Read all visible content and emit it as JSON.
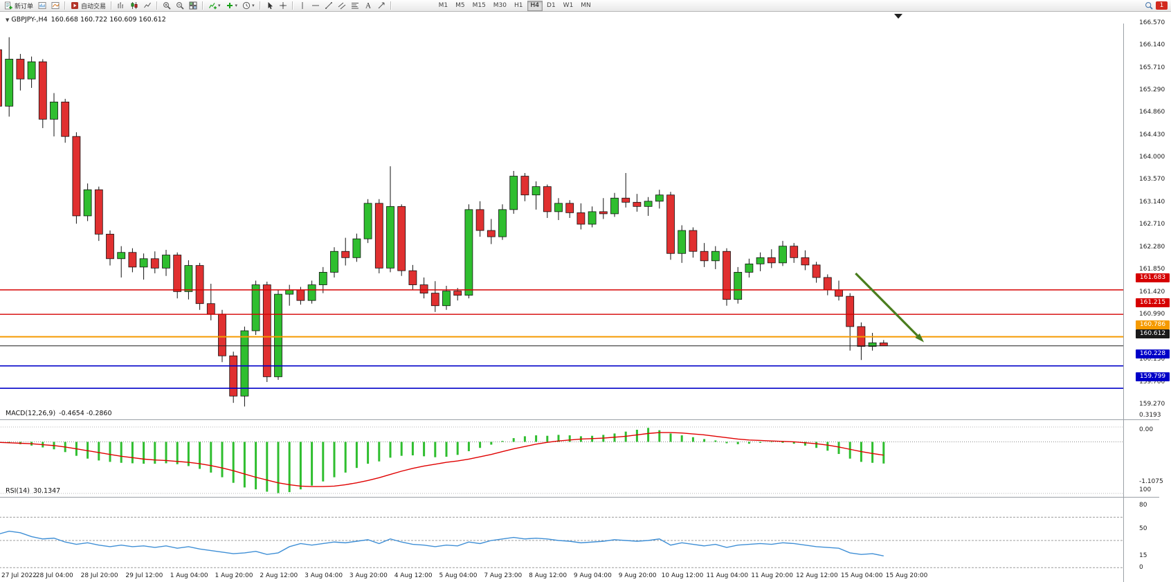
{
  "toolbar": {
    "buttons": [
      {
        "name": "new-order",
        "icon": "doc-plus",
        "label": "新订单"
      },
      {
        "name": "charts-window",
        "icon": "chart-window"
      },
      {
        "name": "chart-cycle",
        "icon": "chart-cycle"
      },
      {
        "sep": true
      },
      {
        "name": "autotrade",
        "icon": "autotrade",
        "label": "自动交易"
      },
      {
        "sep": true
      },
      {
        "name": "bars-chart",
        "icon": "bars-chart"
      },
      {
        "name": "candles-chart",
        "icon": "candles-chart"
      },
      {
        "name": "line-chart",
        "icon": "line-chart"
      },
      {
        "sep": true
      },
      {
        "name": "zoom-in",
        "icon": "zoom-in"
      },
      {
        "name": "zoom-out",
        "icon": "zoom-out"
      },
      {
        "name": "tile-windows",
        "icon": "tile-windows"
      },
      {
        "sep": true
      },
      {
        "name": "indicators",
        "icon": "indicators",
        "caret": true
      },
      {
        "name": "add-indicator",
        "icon": "add-plus",
        "caret": true
      },
      {
        "name": "periods",
        "icon": "clock",
        "caret": true
      },
      {
        "sep": true
      },
      {
        "name": "cursor",
        "icon": "cursor"
      },
      {
        "name": "crosshair",
        "icon": "crosshair"
      },
      {
        "sep": true
      },
      {
        "name": "vertical-line",
        "icon": "vline"
      },
      {
        "name": "horizontal-line",
        "icon": "hline"
      },
      {
        "name": "trendline",
        "icon": "trendline"
      },
      {
        "name": "equidistant-channel",
        "icon": "channel"
      },
      {
        "name": "fibonacci",
        "icon": "fibonacci"
      },
      {
        "name": "text",
        "icon": "text-tool"
      },
      {
        "name": "arrows",
        "icon": "arrows-tool"
      },
      {
        "sep": true
      }
    ],
    "timeframes": [
      "M1",
      "M5",
      "M15",
      "M30",
      "H1",
      "H4",
      "D1",
      "W1",
      "MN"
    ],
    "active_timeframe": "H4",
    "notification_count": "1"
  },
  "colors": {
    "bull": "#2fbe2f",
    "bear": "#e03030",
    "wick": "#111111",
    "macd_hist": "#2fbe2f",
    "macd_signal": "#e00000",
    "rsi_line": "#3f8fd6",
    "arrow": "#4a7d1e",
    "separator": "#9aa0a6"
  },
  "chart_data": [
    {
      "type": "candlestick",
      "symbol_period": "GBPJPY-,H4",
      "ohlc_display": "160.668 160.722 160.609 160.612",
      "ylim": [
        159.27,
        166.57
      ],
      "y_ticks": [
        166.57,
        166.14,
        165.71,
        165.29,
        164.86,
        164.43,
        164.0,
        163.57,
        163.14,
        162.71,
        162.28,
        161.85,
        161.42,
        160.99,
        160.56,
        160.13,
        159.7,
        159.27
      ],
      "x_labels": [
        "27 Jul 2022",
        "28 Jul 04:00",
        "28 Jul 20:00",
        "29 Jul 12:00",
        "1 Aug 04:00",
        "1 Aug 20:00",
        "2 Aug 12:00",
        "3 Aug 04:00",
        "3 Aug 20:00",
        "4 Aug 12:00",
        "5 Aug 04:00",
        "7 Aug 23:00",
        "8 Aug 12:00",
        "9 Aug 04:00",
        "9 Aug 20:00",
        "10 Aug 12:00",
        "11 Aug 04:00",
        "11 Aug 20:00",
        "12 Aug 12:00",
        "15 Aug 04:00",
        "15 Aug 20:00"
      ],
      "candles": [
        [
          166.28,
          166.45,
          165.05,
          165.2
        ],
        [
          165.2,
          166.52,
          165.0,
          166.1
        ],
        [
          166.1,
          166.2,
          165.5,
          165.72
        ],
        [
          165.72,
          166.15,
          165.55,
          166.05
        ],
        [
          166.05,
          166.1,
          164.78,
          164.95
        ],
        [
          164.95,
          165.45,
          164.62,
          165.28
        ],
        [
          165.28,
          165.34,
          164.5,
          164.62
        ],
        [
          164.62,
          164.7,
          162.95,
          163.1
        ],
        [
          163.1,
          163.72,
          163.0,
          163.6
        ],
        [
          163.6,
          163.66,
          162.62,
          162.75
        ],
        [
          162.75,
          162.82,
          162.15,
          162.28
        ],
        [
          162.28,
          162.52,
          161.92,
          162.4
        ],
        [
          162.4,
          162.48,
          162.02,
          162.12
        ],
        [
          162.12,
          162.38,
          161.88,
          162.28
        ],
        [
          162.28,
          162.42,
          162.0,
          162.1
        ],
        [
          162.1,
          162.45,
          161.95,
          162.35
        ],
        [
          162.35,
          162.4,
          161.52,
          161.65
        ],
        [
          161.65,
          162.25,
          161.5,
          162.15
        ],
        [
          162.15,
          162.2,
          161.3,
          161.42
        ],
        [
          161.42,
          161.8,
          161.1,
          161.22
        ],
        [
          161.22,
          161.3,
          160.3,
          160.42
        ],
        [
          160.42,
          160.5,
          159.52,
          159.65
        ],
        [
          159.65,
          160.98,
          159.45,
          160.9
        ],
        [
          160.9,
          161.86,
          160.82,
          161.78
        ],
        [
          161.78,
          161.84,
          159.92,
          160.02
        ],
        [
          160.02,
          161.68,
          159.96,
          161.6
        ],
        [
          161.6,
          161.78,
          161.38,
          161.68
        ],
        [
          161.68,
          161.74,
          161.4,
          161.48
        ],
        [
          161.48,
          161.86,
          161.42,
          161.78
        ],
        [
          161.78,
          162.12,
          161.62,
          162.02
        ],
        [
          162.02,
          162.5,
          161.92,
          162.42
        ],
        [
          162.42,
          162.68,
          162.15,
          162.3
        ],
        [
          162.3,
          162.76,
          162.22,
          162.66
        ],
        [
          162.66,
          163.42,
          162.58,
          163.34
        ],
        [
          163.34,
          163.42,
          162.0,
          162.1
        ],
        [
          162.1,
          164.05,
          162.02,
          163.28
        ],
        [
          163.28,
          163.32,
          161.95,
          162.05
        ],
        [
          162.05,
          162.16,
          161.68,
          161.78
        ],
        [
          161.78,
          161.92,
          161.52,
          161.62
        ],
        [
          161.62,
          161.85,
          161.26,
          161.38
        ],
        [
          161.38,
          161.76,
          161.3,
          161.66
        ],
        [
          161.66,
          161.72,
          161.48,
          161.58
        ],
        [
          161.58,
          163.32,
          161.52,
          163.22
        ],
        [
          163.22,
          163.38,
          162.7,
          162.82
        ],
        [
          162.82,
          163.04,
          162.56,
          162.7
        ],
        [
          162.7,
          163.32,
          162.64,
          163.22
        ],
        [
          163.22,
          163.96,
          163.14,
          163.86
        ],
        [
          163.86,
          163.92,
          163.38,
          163.5
        ],
        [
          163.5,
          163.76,
          163.22,
          163.66
        ],
        [
          163.66,
          163.7,
          163.06,
          163.18
        ],
        [
          163.18,
          163.44,
          163.02,
          163.34
        ],
        [
          163.34,
          163.4,
          163.06,
          163.16
        ],
        [
          163.16,
          163.34,
          162.84,
          162.94
        ],
        [
          162.94,
          163.28,
          162.88,
          163.18
        ],
        [
          163.18,
          163.44,
          163.04,
          163.14
        ],
        [
          163.14,
          163.54,
          163.08,
          163.44
        ],
        [
          163.44,
          163.92,
          163.26,
          163.36
        ],
        [
          163.36,
          163.52,
          163.18,
          163.28
        ],
        [
          163.28,
          163.46,
          163.1,
          163.38
        ],
        [
          163.38,
          163.6,
          163.24,
          163.5
        ],
        [
          163.5,
          163.56,
          162.26,
          162.38
        ],
        [
          162.38,
          162.92,
          162.2,
          162.82
        ],
        [
          162.82,
          162.88,
          162.3,
          162.42
        ],
        [
          162.42,
          162.58,
          162.12,
          162.24
        ],
        [
          162.24,
          162.52,
          162.08,
          162.42
        ],
        [
          162.42,
          162.48,
          161.38,
          161.5
        ],
        [
          161.5,
          162.12,
          161.42,
          162.02
        ],
        [
          162.02,
          162.28,
          161.92,
          162.18
        ],
        [
          162.18,
          162.4,
          162.04,
          162.3
        ],
        [
          162.3,
          162.46,
          162.1,
          162.2
        ],
        [
          162.2,
          162.62,
          162.14,
          162.52
        ],
        [
          162.52,
          162.58,
          162.2,
          162.3
        ],
        [
          162.3,
          162.44,
          162.06,
          162.16
        ],
        [
          162.16,
          162.22,
          161.82,
          161.92
        ],
        [
          161.92,
          161.98,
          161.58,
          161.68
        ],
        [
          161.68,
          161.86,
          161.48,
          161.56
        ],
        [
          161.56,
          161.62,
          160.52,
          160.98
        ],
        [
          160.98,
          161.06,
          160.34,
          160.6
        ],
        [
          160.6,
          160.86,
          160.52,
          160.67
        ],
        [
          160.668,
          160.722,
          160.609,
          160.612
        ]
      ],
      "hlines": [
        {
          "price": 161.683,
          "label": "161.683",
          "color": "#d60000",
          "width": 1.4
        },
        {
          "price": 161.215,
          "label": "161.215",
          "color": "#d60000",
          "width": 1.4
        },
        {
          "price": 160.786,
          "label": "160.786",
          "color": "#f59a00",
          "width": 2
        },
        {
          "price": 160.612,
          "label": "160.612",
          "color": "#1a1a1a",
          "width": 1
        },
        {
          "price": 160.228,
          "label": "160.228",
          "color": "#0000c8",
          "width": 1.6
        },
        {
          "price": 159.799,
          "label": "159.799",
          "color": "#0000c8",
          "width": 1.6
        }
      ],
      "annotation_arrow": {
        "from_index": 76.5,
        "from_price": 162.0,
        "to_index": 82.6,
        "to_price": 160.68
      }
    },
    {
      "type": "macd",
      "name": "MACD(12,26,9)",
      "values_display": "-0.4654 -0.2860",
      "ylim": [
        -1.1075,
        0.3193
      ],
      "y_ticks": [
        [
          "0.3193",
          0.3193
        ],
        [
          "0.00",
          0
        ],
        [
          "-1.1075",
          -1.1075
        ]
      ],
      "hist": [
        -0.02,
        -0.03,
        -0.05,
        -0.08,
        -0.12,
        -0.16,
        -0.22,
        -0.3,
        -0.36,
        -0.4,
        -0.43,
        -0.45,
        -0.46,
        -0.47,
        -0.47,
        -0.46,
        -0.48,
        -0.52,
        -0.58,
        -0.66,
        -0.76,
        -0.88,
        -0.98,
        -1.02,
        -1.07,
        -1.1,
        -1.08,
        -1.02,
        -0.94,
        -0.85,
        -0.76,
        -0.66,
        -0.56,
        -0.47,
        -0.42,
        -0.34,
        -0.3,
        -0.29,
        -0.31,
        -0.33,
        -0.32,
        -0.28,
        -0.2,
        -0.13,
        -0.06,
        0.02,
        0.08,
        0.12,
        0.14,
        0.13,
        0.15,
        0.14,
        0.12,
        0.13,
        0.15,
        0.18,
        0.22,
        0.26,
        0.3,
        0.25,
        0.18,
        0.14,
        0.1,
        0.06,
        0.03,
        -0.03,
        -0.05,
        -0.04,
        -0.02,
        -0.01,
        -0.02,
        -0.04,
        -0.08,
        -0.13,
        -0.19,
        -0.26,
        -0.36,
        -0.43,
        -0.45,
        -0.4654
      ],
      "signal": [
        -0.01,
        -0.02,
        -0.03,
        -0.04,
        -0.06,
        -0.08,
        -0.11,
        -0.15,
        -0.19,
        -0.23,
        -0.27,
        -0.31,
        -0.34,
        -0.37,
        -0.39,
        -0.4,
        -0.42,
        -0.44,
        -0.47,
        -0.51,
        -0.56,
        -0.62,
        -0.69,
        -0.76,
        -0.82,
        -0.88,
        -0.92,
        -0.95,
        -0.96,
        -0.96,
        -0.95,
        -0.92,
        -0.88,
        -0.83,
        -0.77,
        -0.7,
        -0.63,
        -0.57,
        -0.52,
        -0.48,
        -0.44,
        -0.41,
        -0.37,
        -0.32,
        -0.27,
        -0.21,
        -0.15,
        -0.1,
        -0.05,
        -0.01,
        0.02,
        0.04,
        0.06,
        0.07,
        0.08,
        0.1,
        0.12,
        0.15,
        0.18,
        0.2,
        0.2,
        0.19,
        0.17,
        0.15,
        0.12,
        0.09,
        0.06,
        0.04,
        0.03,
        0.02,
        0.01,
        0.0,
        -0.02,
        -0.04,
        -0.07,
        -0.11,
        -0.16,
        -0.21,
        -0.25,
        -0.286
      ]
    },
    {
      "type": "rsi",
      "name": "RSI(14)",
      "value_display": "30.1347",
      "ylim": [
        0,
        100
      ],
      "levels": [
        80,
        50,
        15
      ],
      "y_ticks": [
        [
          "100",
          100
        ],
        [
          "80",
          80
        ],
        [
          "50",
          50
        ],
        [
          "15",
          15
        ],
        [
          "0",
          0
        ]
      ],
      "values": [
        58,
        62,
        60,
        55,
        52,
        53,
        48,
        45,
        47,
        44,
        42,
        44,
        42,
        43,
        41,
        43,
        40,
        42,
        39,
        37,
        35,
        33,
        34,
        36,
        32,
        34,
        42,
        46,
        44,
        46,
        48,
        47,
        49,
        51,
        46,
        52,
        48,
        45,
        44,
        42,
        44,
        43,
        48,
        46,
        50,
        52,
        54,
        52,
        53,
        52,
        50,
        49,
        47,
        48,
        49,
        51,
        50,
        49,
        50,
        52,
        44,
        47,
        45,
        43,
        45,
        41,
        44,
        45,
        46,
        45,
        47,
        46,
        44,
        42,
        41,
        40,
        34,
        32,
        33,
        30.13
      ]
    }
  ]
}
